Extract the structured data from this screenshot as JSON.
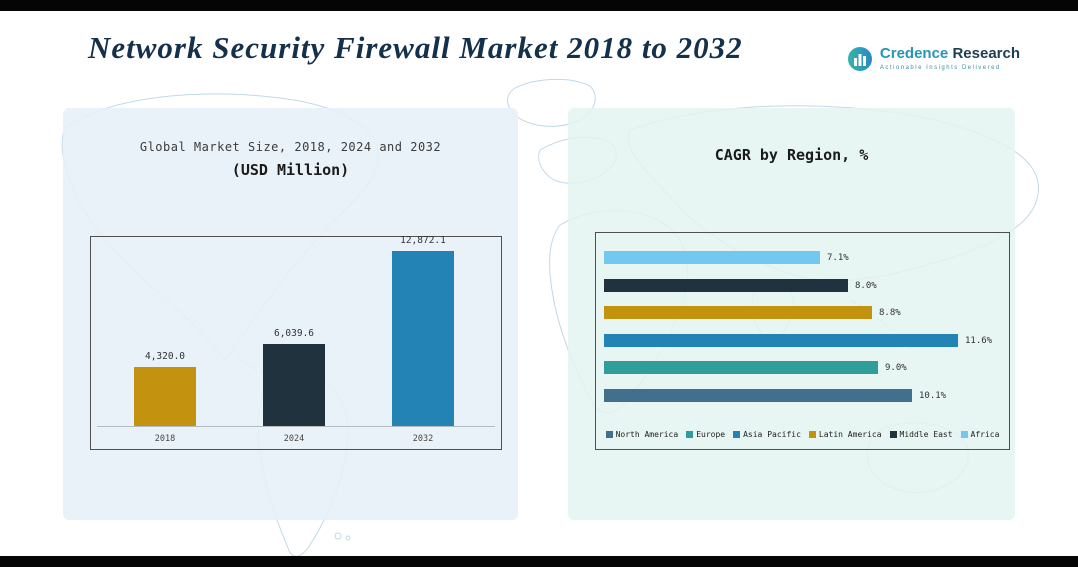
{
  "header": {
    "title": "Network Security Firewall Market 2018 to 2032"
  },
  "logo": {
    "brand_primary": "Credence",
    "brand_secondary": "Research",
    "tagline": "Actionable Insights Delivered"
  },
  "chart_data": [
    {
      "type": "bar",
      "title": "Global Market Size, 2018, 2024 and 2032",
      "subtitle": "(USD Million)",
      "categories": [
        "2018",
        "2024",
        "2032"
      ],
      "values": [
        4320.0,
        6039.6,
        12872.1
      ],
      "value_labels": [
        "4,320.0",
        "6,039.6",
        "12,872.1"
      ],
      "bar_colors": [
        "#c3920e",
        "#20323e",
        "#2383b4"
      ],
      "xlabel": "",
      "ylabel": "USD Million",
      "ylim": [
        0,
        13000
      ],
      "grid": false,
      "legend_position": "none"
    },
    {
      "type": "bar",
      "orientation": "horizontal",
      "title": "CAGR by Region, %",
      "categories": [
        "Africa",
        "Middle East",
        "Latin America",
        "Asia Pacific",
        "Europe",
        "North America"
      ],
      "values": [
        7.1,
        8.0,
        8.8,
        11.6,
        9.0,
        10.1
      ],
      "value_labels": [
        "7.1%",
        "8.0%",
        "8.8%",
        "11.6%",
        "9.0%",
        "10.1%"
      ],
      "bar_colors": [
        "#72c8ef",
        "#20323e",
        "#c3920e",
        "#2383b4",
        "#2f9d99",
        "#41708e"
      ],
      "xlim": [
        0,
        12.4
      ],
      "grid": false,
      "legend_position": "bottom",
      "legend": [
        {
          "label": "North America",
          "color": "#41708e"
        },
        {
          "label": "Europe",
          "color": "#2f9d99"
        },
        {
          "label": "Asia Pacific",
          "color": "#2383b4"
        },
        {
          "label": "Latin America",
          "color": "#c3920e"
        },
        {
          "label": "Middle East",
          "color": "#20323e"
        },
        {
          "label": "Africa",
          "color": "#72c8ef"
        }
      ]
    }
  ],
  "colors": {
    "panel_left_bg": "#e7f0f8",
    "panel_right_bg": "#e3f4f1",
    "title_navy": "#14304a",
    "letterbox": "#050505"
  }
}
